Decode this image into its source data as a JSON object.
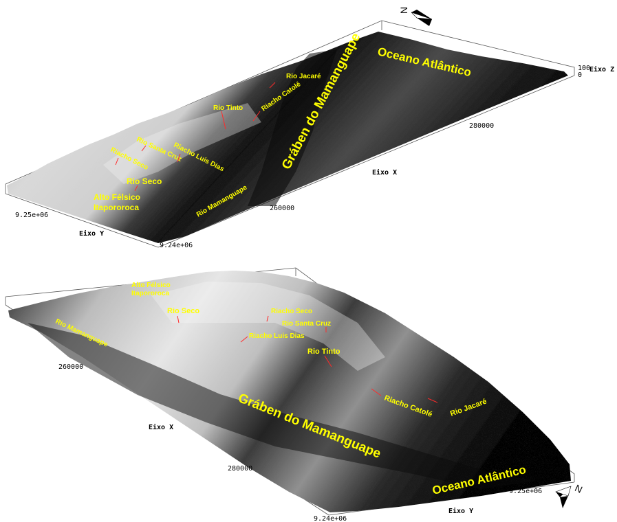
{
  "colors": {
    "label": "#ffff00",
    "pointer": "#ff2a2a",
    "terrain_high": "#f2f2f2",
    "terrain_low": "#050505"
  },
  "top_view": {
    "ocean": "Oceano Atlântico",
    "graben": "Gráben do Mamanguape",
    "rio_jacare": "Rio Jacaré",
    "riacho_catole": "Riacho Catolé",
    "rio_tinto": "Rio Tinto",
    "rio_santa_cruz": "Rio Santa Cruz",
    "riacho_luis_dias": "Riacho Luis Dias",
    "riacho_seco": "Riacho Seco",
    "rio_seco": "Rio Seco",
    "alto_felsico_1": "Alto Félsico",
    "alto_felsico_2": "Itapororoca",
    "rio_mamanguape": "Rio Mamanguape",
    "axis_x": "Eixo X",
    "axis_y": "Eixo Y",
    "axis_z": "Eixo Z",
    "tick_x_1": "260000",
    "tick_x_2": "280000",
    "tick_y_1": "9.25e+06",
    "tick_y_2": "9.24e+06",
    "tick_z_1": "100",
    "tick_z_2": "0",
    "north": "N"
  },
  "bottom_view": {
    "ocean": "Oceano Atlântico",
    "graben": "Gráben do Mamanguape",
    "rio_jacare": "Rio Jacaré",
    "riacho_catole": "Riacho Catolé",
    "rio_tinto": "Rio Tinto",
    "rio_santa_cruz": "Rio Santa Cruz",
    "riacho_luis_dias": "Riacho Luis Dias",
    "riacho_seco": "Riacho Seco",
    "rio_seco": "Rio Seco",
    "alto_felsico_1": "Alto Félsico",
    "alto_felsico_2": "Itapororoca",
    "rio_mamanguape": "Rio Mamanguape",
    "axis_x": "Eixo X",
    "axis_y": "Eixo Y",
    "tick_x_1": "260000",
    "tick_x_2": "280000",
    "tick_y_1": "9.25e+06",
    "tick_y_2": "9.24e+06",
    "north": "N"
  }
}
